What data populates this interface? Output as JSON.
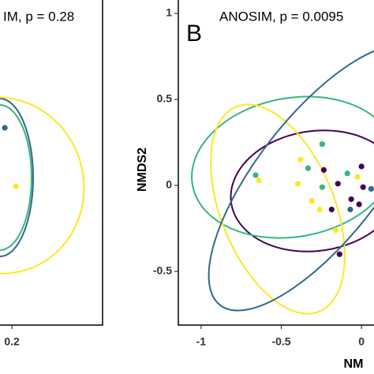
{
  "chart_data": [
    {
      "type": "scatter",
      "title": "IM, p = 0.28",
      "xlim": [
        0.126,
        0.764
      ],
      "ylim": [
        -0.812,
        1.078
      ],
      "xticks": [
        0.2
      ],
      "series": [
        {
          "color": "#31688e",
          "x": [
            0.156
          ],
          "values": [
            0.335
          ]
        },
        {
          "color": "#fde725",
          "x": [
            0.225
          ],
          "values": [
            -0.005
          ]
        }
      ]
    },
    {
      "type": "scatter",
      "panel_label": "B",
      "title": "ANOSIM, p = 0.0095",
      "xlabel": "NM",
      "ylabel": "NMDS2",
      "xlim": [
        -1.142,
        0.078
      ],
      "ylim": [
        -0.812,
        1.078
      ],
      "xticks": [
        -1.0,
        -0.5,
        0.0
      ],
      "yticks": [
        1.0,
        0.5,
        0.0,
        -0.5
      ],
      "series": [
        {
          "color": "#35b779",
          "x": [
            -0.66,
            -0.245,
            -0.333,
            -0.245,
            -0.088
          ],
          "values": [
            0.06,
            0.24,
            0.1,
            -0.01,
            0.07
          ]
        },
        {
          "color": "#fde725",
          "x": [
            -0.64,
            -0.38,
            -0.397,
            -0.31,
            -0.26,
            -0.16,
            -0.025
          ],
          "values": [
            0.03,
            0.15,
            0.01,
            -0.09,
            -0.14,
            -0.26,
            0.05
          ]
        },
        {
          "color": "#440154",
          "x": [
            -0.235,
            -0.147,
            -0.064,
            0.0,
            0.01,
            -0.137,
            -0.186,
            -0.015
          ],
          "values": [
            0.09,
            0.01,
            -0.08,
            0.11,
            -0.01,
            -0.4,
            -0.14,
            -0.11
          ]
        },
        {
          "color": "#31688e",
          "x": [
            0.06,
            -0.07
          ],
          "values": [
            -0.02,
            -0.14
          ]
        }
      ]
    }
  ]
}
